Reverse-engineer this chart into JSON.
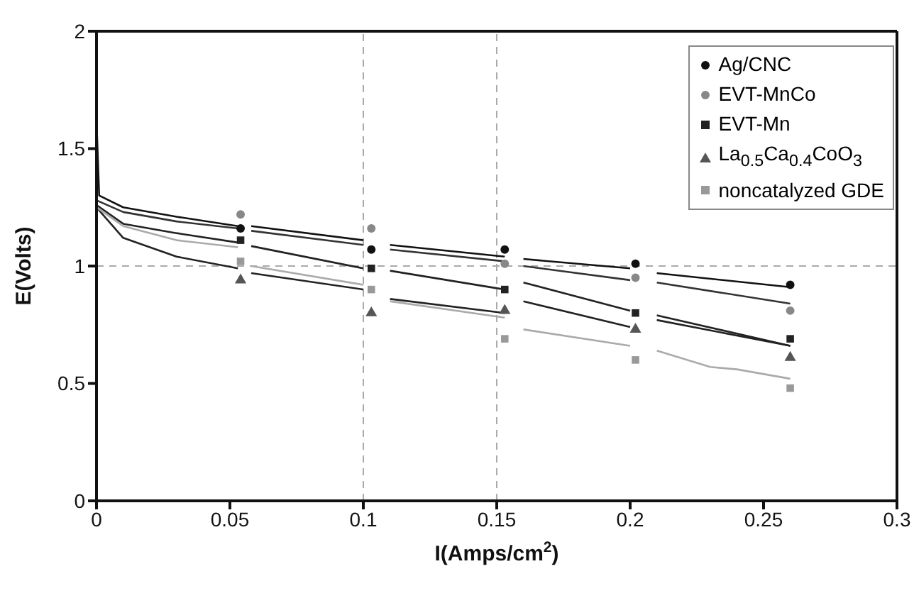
{
  "chart_data": {
    "type": "line",
    "xlabel": "I(Amps/cm$^{2}$)",
    "ylabel": "E(Volts)",
    "xlim": [
      0,
      0.3
    ],
    "ylim": [
      0,
      2
    ],
    "xticks": [
      0,
      0.05,
      0.1,
      0.15,
      0.2,
      0.25,
      0.3
    ],
    "yticks": [
      0,
      0.5,
      1,
      1.5,
      2
    ],
    "legend": "top right",
    "ref_lines": [
      {
        "axis": "x",
        "value": 0.1,
        "color": "#aaaaaa",
        "line_style": "dashed"
      },
      {
        "axis": "x",
        "value": 0.15,
        "color": "#aaaaaa",
        "line_style": "dashed"
      },
      {
        "axis": "y",
        "value": 1,
        "color": "#aaaaaa",
        "line_style": "dashed"
      }
    ],
    "series": [
      {
        "marker": "none",
        "color": "#111111",
        "x": [
          0,
          0.001,
          0.01,
          0.03,
          0.053,
          0.055,
          0.058,
          0.1,
          0.105,
          0.11,
          0.153,
          0.156,
          0.16,
          0.2,
          0.205,
          0.21,
          0.26
        ],
        "values": [
          1.62,
          1.3,
          1.25,
          1.21,
          1.17,
          null,
          1.17,
          1.11,
          null,
          1.09,
          1.04,
          null,
          1.03,
          0.99,
          null,
          0.97,
          0.91
        ]
      },
      {
        "marker": "none",
        "color": "#333333",
        "x": [
          0,
          0.01,
          0.03,
          0.053,
          0.055,
          0.058,
          0.1,
          0.105,
          0.11,
          0.153,
          0.156,
          0.16,
          0.2,
          0.205,
          0.21,
          0.26
        ],
        "values": [
          1.28,
          1.23,
          1.19,
          1.16,
          null,
          1.15,
          1.09,
          null,
          1.07,
          1.02,
          null,
          1.0,
          0.94,
          null,
          0.93,
          0.84
        ]
      },
      {
        "marker": "none",
        "color": "#222222",
        "x": [
          0,
          0.01,
          0.03,
          0.053,
          0.055,
          0.058,
          0.1,
          0.105,
          0.11,
          0.153,
          0.156,
          0.16,
          0.2,
          0.205,
          0.21,
          0.26
        ],
        "values": [
          1.26,
          1.18,
          1.14,
          1.1,
          null,
          1.085,
          0.99,
          null,
          0.98,
          0.9,
          null,
          0.93,
          0.81,
          null,
          0.79,
          0.66
        ]
      },
      {
        "marker": "none",
        "color": "#222222",
        "x": [
          0,
          0.01,
          0.03,
          0.053,
          0.055,
          0.058,
          0.1,
          0.105,
          0.11,
          0.153,
          0.156,
          0.16,
          0.2,
          0.205,
          0.21,
          0.26
        ],
        "values": [
          1.25,
          1.12,
          1.04,
          0.99,
          null,
          0.97,
          0.9,
          null,
          0.86,
          0.8,
          null,
          0.85,
          0.74,
          null,
          0.77,
          0.66
        ]
      },
      {
        "marker": "none",
        "color": "#aaaaaa",
        "x": [
          0,
          0.01,
          0.03,
          0.053,
          0.055,
          0.058,
          0.1,
          0.105,
          0.11,
          0.153,
          0.156,
          0.16,
          0.2,
          0.205,
          0.21,
          0.23,
          0.24,
          0.26
        ],
        "values": [
          1.25,
          1.17,
          1.11,
          1.08,
          null,
          1.0,
          0.92,
          null,
          0.85,
          0.78,
          null,
          0.73,
          0.66,
          null,
          0.64,
          0.57,
          0.56,
          0.52
        ]
      },
      {
        "type": "scatter",
        "name": "Ag/CNC",
        "marker": "circle",
        "color": "#111111",
        "x": [
          0.054,
          0.103,
          0.153,
          0.202,
          0.26
        ],
        "values": [
          1.16,
          1.07,
          1.07,
          1.01,
          0.92
        ]
      },
      {
        "type": "scatter",
        "name": "EVT-MnCo",
        "marker": "circle",
        "color": "#888888",
        "x": [
          0.054,
          0.103,
          0.153,
          0.202,
          0.26
        ],
        "values": [
          1.22,
          1.16,
          1.01,
          0.95,
          0.81
        ]
      },
      {
        "type": "scatter",
        "name": "EVT-Mn",
        "marker": "square",
        "color": "#222222",
        "x": [
          0.054,
          0.103,
          0.153,
          0.202,
          0.26
        ],
        "values": [
          1.11,
          0.99,
          0.9,
          0.8,
          0.69
        ]
      },
      {
        "type": "scatter",
        "name": "La$_{0.5}$Ca$_{0.4}$CoO$_{3}$",
        "marker": "triangle",
        "color": "#555555",
        "x": [
          0.054,
          0.103,
          0.153,
          0.202,
          0.26
        ],
        "values": [
          0.94,
          0.8,
          0.81,
          0.73,
          0.61
        ]
      },
      {
        "type": "scatter",
        "name": "noncatalyzed GDE",
        "marker": "square",
        "color": "#999999",
        "x": [
          0.054,
          0.103,
          0.153,
          0.202,
          0.26
        ],
        "values": [
          1.02,
          0.9,
          0.69,
          0.6,
          0.48
        ]
      }
    ]
  }
}
